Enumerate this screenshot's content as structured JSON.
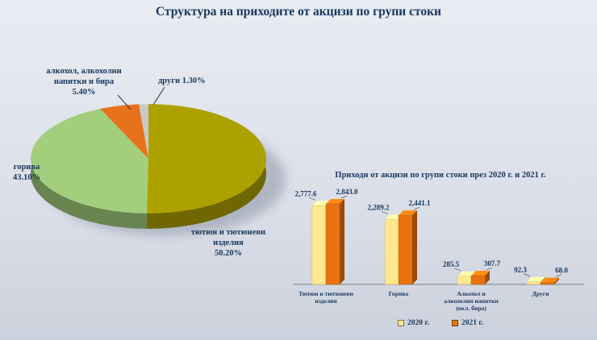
{
  "page": {
    "title": "Структура на приходите от акцизи по групи стоки"
  },
  "pie_labels": {
    "alcohol": "алкохол, алкохолни\nнапитки и бира\n5.40%",
    "others": "други 1.30%",
    "fuel": "горива\n43.10%",
    "tobacco": "тютюн и тютюневи\nизделия\n50.20%"
  },
  "chart_data": [
    {
      "type": "pie",
      "title": "Структура на приходите от акцизи по групи стоки",
      "unit": "percent",
      "slices": [
        {
          "label": "тютюн и тютюневи изделия",
          "value": 50.2,
          "color": "#ADA100"
        },
        {
          "label": "горива",
          "value": 43.1,
          "color": "#A3CE7C"
        },
        {
          "label": "алкохол, алкохолни напитки и бира",
          "value": 5.4,
          "color": "#E8721B"
        },
        {
          "label": "други",
          "value": 1.3,
          "color": "#C9C9C9"
        }
      ]
    },
    {
      "type": "bar",
      "title": "Приходи от акцизи по групи стоки през 2020 г. и 2021 г.",
      "categories": [
        "Тютюн и тютюневи изделия",
        "Горива",
        "Алкохол и алкохолни напитки (вкл. бира)",
        "Други"
      ],
      "category_lines": [
        [
          "Тютюн и тютюневи",
          "изделия"
        ],
        [
          "Горива"
        ],
        [
          "Алкохол и",
          "алкохолни напитки",
          "(вкл. бира)"
        ],
        [
          "Други"
        ]
      ],
      "series": [
        {
          "name": "2020 г.",
          "color": "#FFE88F",
          "values": [
            2777.6,
            2289.2,
            285.5,
            92.3
          ]
        },
        {
          "name": "2021 г.",
          "color": "#E9730F",
          "values": [
            2843.0,
            2441.1,
            307.7,
            68.0
          ]
        }
      ],
      "value_labels": [
        [
          "2,777.6",
          "2,289.2",
          "285.5",
          "92.3"
        ],
        [
          "2,843.0",
          "2,441.1",
          "307.7",
          "68.0"
        ]
      ],
      "ylim": [
        0,
        2900
      ],
      "grid": false,
      "legend_position": "bottom"
    }
  ]
}
